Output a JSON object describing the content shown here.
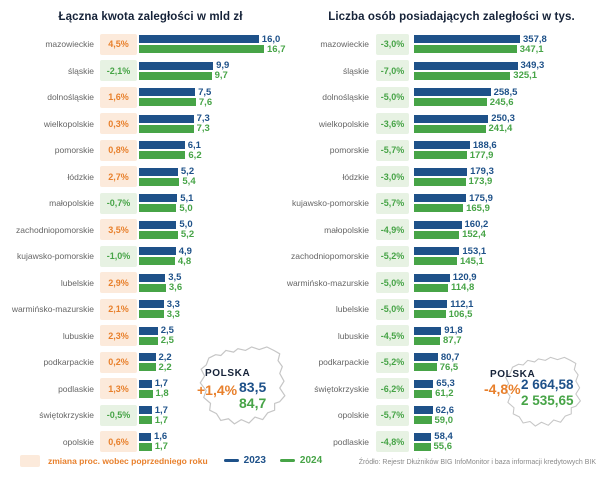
{
  "colors": {
    "bar_2023": "#1e5189",
    "bar_2024": "#47a447",
    "positive_badge_bg": "#fceadb",
    "positive_badge_text": "#e8802c",
    "negative_badge_bg": "#e7f2e3",
    "negative_badge_text": "#47a447",
    "title_text": "#152238",
    "region_label_text": "#666666",
    "map_outline": "#c6c6c6",
    "source_text": "#8a8a8a"
  },
  "legend": {
    "swatch_label": "zmiana proc. wobec poprzedniego roku",
    "series": [
      {
        "label": "2023",
        "color": "#1e5189"
      },
      {
        "label": "2024",
        "color": "#47a447"
      }
    ]
  },
  "source": "Źródło: Rejestr Dłużników BIG InfoMonitor i baza informacji kredytowych BIK",
  "chart_data": [
    {
      "type": "bar",
      "orientation": "horizontal",
      "title": "Łączna kwota zaległości w mld zł",
      "unit": "mld zł",
      "legend_position": "bottom",
      "grid": false,
      "categories": [
        "mazowieckie",
        "śląskie",
        "dolnośląskie",
        "wielkopolskie",
        "pomorskie",
        "łódzkie",
        "małopolskie",
        "zachodniopomorskie",
        "kujawsko-pomorskie",
        "lubelskie",
        "warmińsko-mazurskie",
        "lubuskie",
        "podkarpackie",
        "podlaskie",
        "świętokrzyskie",
        "opolskie"
      ],
      "pct_change": [
        "4,5%",
        "-2,1%",
        "1,6%",
        "0,3%",
        "0,8%",
        "2,7%",
        "-0,7%",
        "3,5%",
        "-1,0%",
        "2,9%",
        "2,1%",
        "2,3%",
        "0,2%",
        "1,3%",
        "-0,5%",
        "0,6%"
      ],
      "series": [
        {
          "name": "2023",
          "values": [
            "16,0",
            "9,9",
            "7,5",
            "7,3",
            "6,1",
            "5,2",
            "5,1",
            "5,0",
            "4,9",
            "3,5",
            "3,3",
            "2,5",
            "2,2",
            "1,7",
            "1,7",
            "1,6"
          ]
        },
        {
          "name": "2024",
          "values": [
            "16,7",
            "9,7",
            "7,6",
            "7,3",
            "6,2",
            "5,4",
            "5,0",
            "5,2",
            "4,8",
            "3,6",
            "3,3",
            "2,5",
            "2,2",
            "1,8",
            "1,7",
            "1,7"
          ]
        }
      ],
      "total": {
        "label": "POLSKA",
        "pct": "+1,4%",
        "values": [
          "83,5",
          "84,7"
        ]
      }
    },
    {
      "type": "bar",
      "orientation": "horizontal",
      "title": "Liczba osób posiadających zaległości w tys.",
      "unit": "tys.",
      "legend_position": "bottom",
      "grid": false,
      "categories": [
        "mazowieckie",
        "śląskie",
        "dolnośląskie",
        "wielkopolskie",
        "pomorskie",
        "łódzkie",
        "kujawsko-pomorskie",
        "małopolskie",
        "zachodniopomorskie",
        "warmińsko-mazurskie",
        "lubelskie",
        "lubuskie",
        "podkarpackie",
        "świętokrzyskie",
        "opolskie",
        "podlaskie"
      ],
      "pct_change": [
        "-3,0%",
        "-7,0%",
        "-5,0%",
        "-3,6%",
        "-5,7%",
        "-3,0%",
        "-5,7%",
        "-4,9%",
        "-5,2%",
        "-5,0%",
        "-5,0%",
        "-4,5%",
        "-5,2%",
        "-6,2%",
        "-5,7%",
        "-4,8%"
      ],
      "series": [
        {
          "name": "2023",
          "values": [
            "357,8",
            "349,3",
            "258,5",
            "250,3",
            "188,6",
            "179,3",
            "175,9",
            "160,2",
            "153,1",
            "120,9",
            "112,1",
            "91,8",
            "80,7",
            "65,3",
            "62,6",
            "58,4"
          ]
        },
        {
          "name": "2024",
          "values": [
            "347,1",
            "325,1",
            "245,6",
            "241,4",
            "177,9",
            "173,9",
            "165,9",
            "152,4",
            "145,1",
            "114,8",
            "106,5",
            "87,7",
            "76,5",
            "61,2",
            "59,0",
            "55,6"
          ]
        }
      ],
      "total": {
        "label": "POLSKA",
        "pct": "-4,8%",
        "values": [
          "2 664,58",
          "2 535,65"
        ]
      }
    }
  ]
}
